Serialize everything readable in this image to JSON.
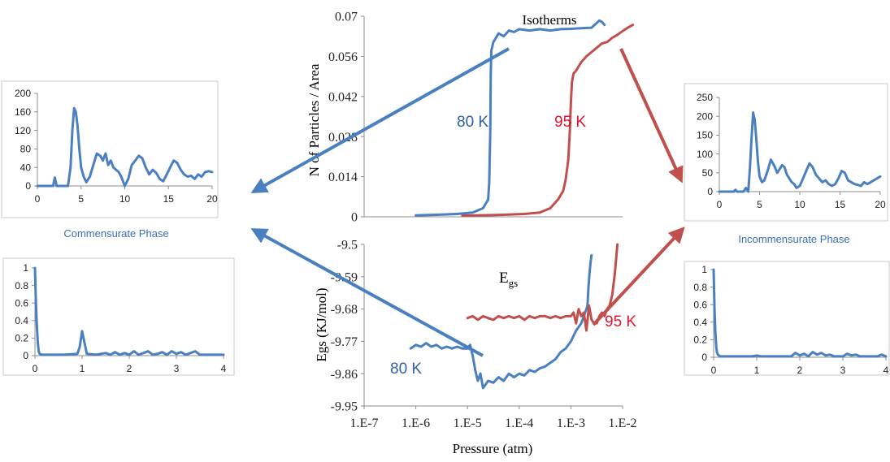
{
  "colors": {
    "blue": "#4a7fc0",
    "red": "#c0504d",
    "label_blue": "#2f5fa0",
    "label_red": "#e0142c",
    "phase_text": "#3a6fb5",
    "frame": "#c8c8c8",
    "axis_text": "#222222"
  },
  "chart_data": [
    {
      "id": "isotherms",
      "type": "line",
      "title": "Isotherms",
      "ylabel": "N of Particles / Area",
      "xlabel": "",
      "log_x": true,
      "xlim": [
        -7,
        -2
      ],
      "ylim": [
        0,
        0.07
      ],
      "ytick_labels": [
        "0",
        "0.014",
        "0.028",
        "0.042",
        "0.056",
        "0.07"
      ],
      "ytick_values": [
        0,
        0.014,
        0.028,
        0.042,
        0.056,
        0.07
      ],
      "series": [
        {
          "name": "80 K",
          "color_key": "blue",
          "x": [
            -6.0,
            -5.6,
            -5.2,
            -4.9,
            -4.7,
            -4.6,
            -4.58,
            -4.56,
            -4.55,
            -4.54,
            -4.5,
            -4.45,
            -4.4,
            -4.3,
            -4.2,
            -4.1,
            -4.0,
            -3.8,
            -3.6,
            -3.4,
            -3.2,
            -3.0,
            -2.8,
            -2.6,
            -2.45,
            -2.4,
            -2.35
          ],
          "y": [
            0.0005,
            0.0007,
            0.001,
            0.0015,
            0.003,
            0.006,
            0.012,
            0.03,
            0.05,
            0.058,
            0.061,
            0.0625,
            0.064,
            0.063,
            0.065,
            0.0645,
            0.0655,
            0.065,
            0.0655,
            0.065,
            0.0655,
            0.0656,
            0.0658,
            0.066,
            0.0685,
            0.068,
            0.067
          ]
        },
        {
          "name": "95 K",
          "color_key": "red",
          "x": [
            -5.1,
            -4.8,
            -4.5,
            -4.2,
            -3.9,
            -3.6,
            -3.4,
            -3.25,
            -3.15,
            -3.1,
            -3.05,
            -3.02,
            -3.0,
            -2.98,
            -2.95,
            -2.9,
            -2.8,
            -2.7,
            -2.6,
            -2.5,
            -2.4,
            -2.3,
            -2.2,
            -2.1,
            -2.0,
            -1.9,
            -1.8
          ],
          "y": [
            0.0004,
            0.0005,
            0.0006,
            0.0008,
            0.001,
            0.0015,
            0.003,
            0.006,
            0.009,
            0.013,
            0.02,
            0.03,
            0.04,
            0.047,
            0.05,
            0.051,
            0.054,
            0.056,
            0.0575,
            0.059,
            0.0605,
            0.061,
            0.0625,
            0.0635,
            0.0648,
            0.066,
            0.067
          ]
        }
      ]
    },
    {
      "id": "egs",
      "type": "line",
      "title": "Egs",
      "title_sub": "gs",
      "title_main": "E",
      "ylabel": "Egs (KJ/mol)",
      "xlabel": "Pressure (atm)",
      "log_x": true,
      "xlim": [
        -7,
        -2
      ],
      "ylim": [
        -9.95,
        -9.5
      ],
      "ytick_labels": [
        "-9.95",
        "-9.86",
        "-9.77",
        "-9.68",
        "-9.59",
        "-9.5"
      ],
      "ytick_values": [
        -9.95,
        -9.86,
        -9.77,
        -9.68,
        -9.59,
        -9.5
      ],
      "xtick_labels": [
        "1.E-7",
        "1.E-6",
        "1.E-5",
        "1.E-4",
        "1.E-3",
        "1.E-2"
      ],
      "xtick_values": [
        -7,
        -6,
        -5,
        -4,
        -3,
        -2
      ],
      "series": [
        {
          "name": "80 K",
          "color_key": "blue",
          "x": [
            -6.1,
            -6.0,
            -5.9,
            -5.8,
            -5.7,
            -5.6,
            -5.5,
            -5.4,
            -5.3,
            -5.2,
            -5.1,
            -5.0,
            -4.95,
            -4.9,
            -4.85,
            -4.8,
            -4.75,
            -4.7,
            -4.65,
            -4.6,
            -4.5,
            -4.4,
            -4.3,
            -4.2,
            -4.1,
            -4.0,
            -3.9,
            -3.8,
            -3.7,
            -3.6,
            -3.5,
            -3.4,
            -3.3,
            -3.2,
            -3.1,
            -3.0,
            -2.9,
            -2.8,
            -2.75,
            -2.7,
            -2.68,
            -2.66,
            -2.64,
            -2.62,
            -2.6
          ],
          "y": [
            -9.79,
            -9.78,
            -9.785,
            -9.775,
            -9.785,
            -9.78,
            -9.79,
            -9.785,
            -9.79,
            -9.785,
            -9.79,
            -9.79,
            -9.78,
            -9.81,
            -9.85,
            -9.88,
            -9.86,
            -9.9,
            -9.89,
            -9.88,
            -9.885,
            -9.87,
            -9.88,
            -9.86,
            -9.87,
            -9.86,
            -9.865,
            -9.85,
            -9.855,
            -9.845,
            -9.84,
            -9.83,
            -9.82,
            -9.8,
            -9.79,
            -9.77,
            -9.74,
            -9.72,
            -9.7,
            -9.68,
            -9.67,
            -9.62,
            -9.58,
            -9.55,
            -9.53
          ]
        },
        {
          "name": "95 K",
          "color_key": "red",
          "x": [
            -5.0,
            -4.9,
            -4.8,
            -4.7,
            -4.6,
            -4.5,
            -4.4,
            -4.3,
            -4.2,
            -4.1,
            -4.0,
            -3.9,
            -3.8,
            -3.7,
            -3.6,
            -3.5,
            -3.4,
            -3.3,
            -3.2,
            -3.1,
            -3.0,
            -2.95,
            -2.9,
            -2.85,
            -2.8,
            -2.75,
            -2.7,
            -2.65,
            -2.6,
            -2.55,
            -2.5,
            -2.45,
            -2.4,
            -2.35,
            -2.3,
            -2.25,
            -2.2,
            -2.15,
            -2.1
          ],
          "y": [
            -9.705,
            -9.7,
            -9.71,
            -9.7,
            -9.705,
            -9.71,
            -9.7,
            -9.705,
            -9.7,
            -9.705,
            -9.7,
            -9.71,
            -9.7,
            -9.705,
            -9.7,
            -9.7,
            -9.705,
            -9.7,
            -9.705,
            -9.7,
            -9.7,
            -9.69,
            -9.72,
            -9.68,
            -9.7,
            -9.69,
            -9.74,
            -9.67,
            -9.71,
            -9.72,
            -9.72,
            -9.7,
            -9.69,
            -9.7,
            -9.68,
            -9.67,
            -9.64,
            -9.58,
            -9.5
          ]
        }
      ]
    },
    {
      "id": "commensurate-rdf",
      "type": "line",
      "caption": "Commensurate Phase",
      "xlim": [
        0,
        20
      ],
      "ylim": [
        0,
        200
      ],
      "xtick_labels": [
        "0",
        "5",
        "10",
        "15",
        "20"
      ],
      "xtick_values": [
        0,
        5,
        10,
        15,
        20
      ],
      "ytick_labels": [
        "0",
        "40",
        "80",
        "120",
        "160",
        "200"
      ],
      "ytick_values": [
        0,
        40,
        80,
        120,
        160,
        200
      ],
      "series": [
        {
          "color_key": "blue",
          "x": [
            0,
            1,
            1.8,
            2,
            2.2,
            3,
            3.5,
            3.8,
            4,
            4.2,
            4.4,
            4.6,
            4.8,
            5,
            5.3,
            5.6,
            6,
            6.4,
            6.8,
            7.2,
            7.5,
            7.8,
            8.1,
            8.4,
            8.7,
            9,
            9.3,
            9.6,
            10,
            10.4,
            10.8,
            11.2,
            11.6,
            12,
            12.4,
            12.8,
            13.2,
            13.6,
            14,
            14.4,
            14.8,
            15.2,
            15.6,
            16,
            16.4,
            16.8,
            17.2,
            17.6,
            18,
            18.4,
            18.8,
            19.2,
            19.6,
            20
          ],
          "y": [
            0,
            0,
            0,
            18,
            0,
            0,
            0,
            40,
            120,
            168,
            160,
            130,
            80,
            40,
            20,
            8,
            20,
            45,
            70,
            65,
            55,
            70,
            45,
            55,
            40,
            35,
            30,
            20,
            0,
            15,
            45,
            55,
            65,
            60,
            40,
            25,
            35,
            28,
            15,
            10,
            25,
            40,
            55,
            50,
            35,
            25,
            20,
            22,
            15,
            25,
            20,
            30,
            32,
            30
          ]
        }
      ]
    },
    {
      "id": "incommensurate-rdf",
      "type": "line",
      "caption": "Incommensurate Phase",
      "xlim": [
        0,
        20
      ],
      "ylim": [
        0,
        250
      ],
      "xtick_labels": [
        "0",
        "5",
        "10",
        "15",
        "20"
      ],
      "xtick_values": [
        0,
        5,
        10,
        15,
        20
      ],
      "ytick_labels": [
        "0",
        "50",
        "100",
        "150",
        "200",
        "250"
      ],
      "ytick_values": [
        0,
        50,
        100,
        150,
        200,
        250
      ],
      "series": [
        {
          "color_key": "blue",
          "x": [
            0,
            1,
            1.8,
            2,
            2.2,
            3,
            3.3,
            3.6,
            3.8,
            4,
            4.2,
            4.4,
            4.6,
            4.8,
            5,
            5.3,
            5.6,
            6,
            6.4,
            6.8,
            7.2,
            7.5,
            7.8,
            8.1,
            8.4,
            8.7,
            9,
            9.3,
            9.6,
            10,
            10.4,
            10.8,
            11.2,
            11.6,
            12,
            12.4,
            12.8,
            13.2,
            13.6,
            14,
            14.4,
            14.8,
            15.2,
            15.6,
            16,
            16.4,
            16.8,
            17.2,
            17.6,
            18,
            18.4,
            18.8,
            19.2,
            19.6,
            20
          ],
          "y": [
            0,
            0,
            0,
            5,
            0,
            0,
            10,
            0,
            60,
            140,
            210,
            190,
            140,
            80,
            40,
            25,
            30,
            55,
            85,
            70,
            50,
            60,
            70,
            65,
            45,
            35,
            25,
            20,
            10,
            15,
            35,
            55,
            75,
            65,
            45,
            35,
            25,
            30,
            20,
            15,
            20,
            35,
            55,
            50,
            30,
            25,
            20,
            18,
            15,
            25,
            20,
            25,
            30,
            35,
            40
          ]
        }
      ]
    },
    {
      "id": "commensurate-sf",
      "type": "line",
      "xlim": [
        0,
        4
      ],
      "ylim": [
        0,
        1
      ],
      "xtick_labels": [
        "0",
        "1",
        "2",
        "3",
        "4"
      ],
      "xtick_values": [
        0,
        1,
        2,
        3,
        4
      ],
      "ytick_labels": [
        "0",
        "0.2",
        "0.4",
        "0.6",
        "0.8",
        "1"
      ],
      "ytick_values": [
        0,
        0.2,
        0.4,
        0.6,
        0.8,
        1
      ],
      "series": [
        {
          "color_key": "blue",
          "x": [
            0,
            0.02,
            0.04,
            0.06,
            0.08,
            0.1,
            0.15,
            0.3,
            0.6,
            0.9,
            0.95,
            1.0,
            1.05,
            1.1,
            1.3,
            1.5,
            1.6,
            1.7,
            1.8,
            1.9,
            2.0,
            2.1,
            2.2,
            2.3,
            2.4,
            2.5,
            2.6,
            2.7,
            2.8,
            2.9,
            3.0,
            3.1,
            3.2,
            3.3,
            3.4,
            3.5,
            3.7,
            4.0
          ],
          "y": [
            1,
            0.6,
            0.35,
            0.15,
            0.05,
            0.02,
            0.01,
            0.01,
            0.01,
            0.02,
            0.1,
            0.28,
            0.15,
            0.02,
            0.01,
            0.03,
            0.01,
            0.04,
            0.01,
            0.03,
            0.01,
            0.05,
            0.01,
            0.03,
            0.05,
            0.01,
            0.02,
            0.04,
            0.01,
            0.05,
            0.02,
            0.04,
            0.01,
            0.03,
            0.05,
            0.01,
            0.01,
            0.01
          ]
        }
      ]
    },
    {
      "id": "incommensurate-sf",
      "type": "line",
      "xlim": [
        0,
        4
      ],
      "ylim": [
        0,
        1
      ],
      "xtick_labels": [
        "0",
        "1",
        "2",
        "3",
        "4"
      ],
      "xtick_values": [
        0,
        1,
        2,
        3,
        4
      ],
      "ytick_labels": [
        "0",
        "0.2",
        "0.4",
        "0.6",
        "0.8",
        "1"
      ],
      "ytick_values": [
        0,
        0.2,
        0.4,
        0.6,
        0.8,
        1
      ],
      "series": [
        {
          "color_key": "blue",
          "x": [
            0,
            0.02,
            0.04,
            0.06,
            0.08,
            0.1,
            0.15,
            0.3,
            0.6,
            0.9,
            1.0,
            1.1,
            1.5,
            1.8,
            1.9,
            2.0,
            2.1,
            2.2,
            2.3,
            2.4,
            2.5,
            2.6,
            2.7,
            2.8,
            3.0,
            3.1,
            3.2,
            3.3,
            3.4,
            3.6,
            3.8,
            3.9,
            4.0
          ],
          "y": [
            1,
            0.55,
            0.3,
            0.12,
            0.05,
            0.03,
            0.01,
            0.01,
            0.01,
            0.01,
            0.02,
            0.01,
            0.01,
            0.01,
            0.05,
            0.02,
            0.04,
            0.01,
            0.06,
            0.03,
            0.05,
            0.02,
            0.03,
            0.01,
            0.01,
            0.04,
            0.02,
            0.03,
            0.01,
            0.01,
            0.01,
            0.03,
            0.01
          ]
        }
      ]
    }
  ]
}
